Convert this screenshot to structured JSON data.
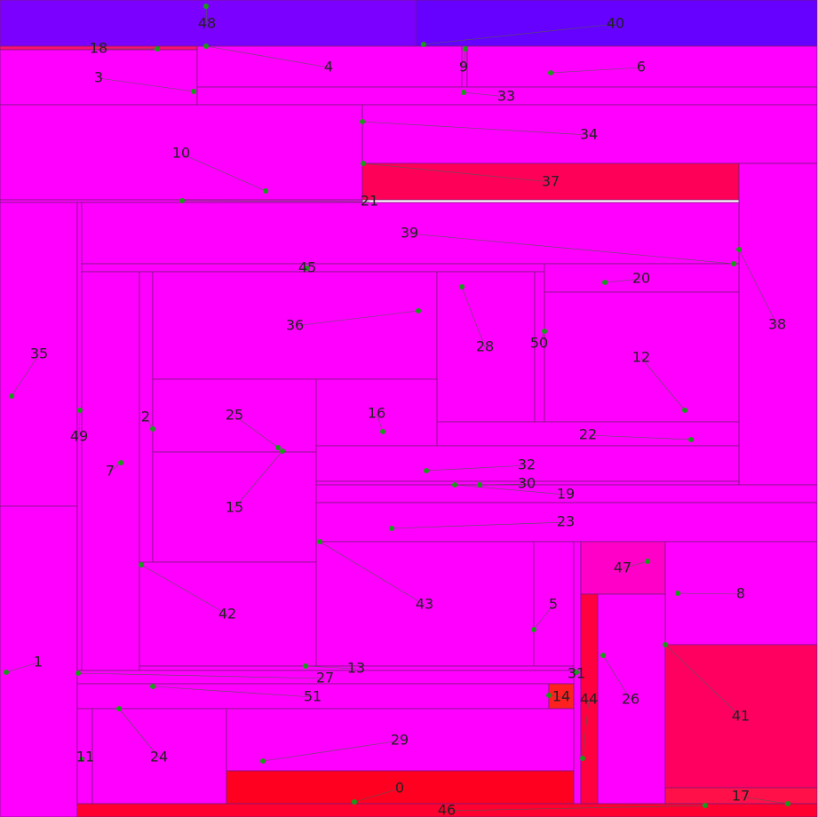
{
  "labels": [
    "0",
    "1",
    "2",
    "3",
    "4",
    "5",
    "6",
    "7",
    "8",
    "9",
    "10",
    "11",
    "12",
    "13",
    "14",
    "15",
    "16",
    "17",
    "18",
    "19",
    "20",
    "21",
    "22",
    "23",
    "24",
    "25",
    "26",
    "27",
    "28",
    "29",
    "30",
    "31",
    "32",
    "33",
    "34",
    "35",
    "36",
    "37",
    "38",
    "39",
    "40",
    "41",
    "42",
    "43",
    "44",
    "45",
    "46",
    "47",
    "48",
    "49",
    "50",
    "51"
  ]
}
